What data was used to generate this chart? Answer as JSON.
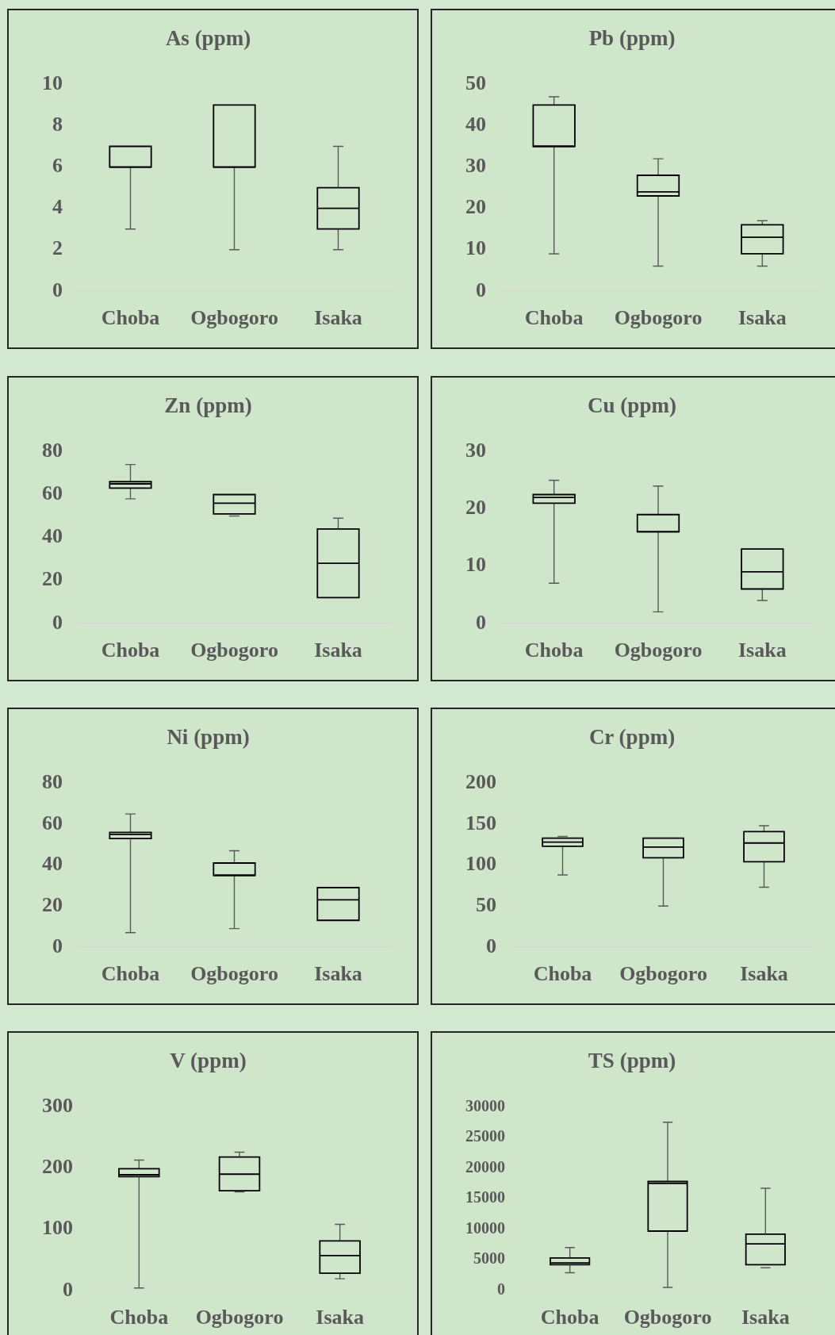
{
  "chart_data": [
    {
      "type": "box",
      "title": "As (ppm)",
      "categories": [
        "Choba",
        "Ogbogoro",
        "Isaka"
      ],
      "ylim": [
        0,
        10
      ],
      "yticks": [
        0,
        2,
        4,
        6,
        8,
        10
      ],
      "boxes": [
        {
          "low": 3,
          "q1": 6,
          "median": 6,
          "q3": 7,
          "high": 7
        },
        {
          "low": 2,
          "q1": 6,
          "median": 6,
          "q3": 9,
          "high": 9
        },
        {
          "low": 2,
          "q1": 3,
          "median": 4,
          "q3": 5,
          "high": 7
        }
      ]
    },
    {
      "type": "box",
      "title": "Pb (ppm)",
      "categories": [
        "Choba",
        "Ogbogoro",
        "Isaka"
      ],
      "ylim": [
        0,
        50
      ],
      "yticks": [
        0,
        10,
        20,
        30,
        40,
        50
      ],
      "boxes": [
        {
          "low": 9,
          "q1": 35,
          "median": 35,
          "q3": 45,
          "high": 47
        },
        {
          "low": 6,
          "q1": 23,
          "median": 24,
          "q3": 28,
          "high": 32
        },
        {
          "low": 6,
          "q1": 9,
          "median": 13,
          "q3": 16,
          "high": 17
        }
      ]
    },
    {
      "type": "box",
      "title": "Zn (ppm)",
      "categories": [
        "Choba",
        "Ogbogoro",
        "Isaka"
      ],
      "ylim": [
        0,
        80
      ],
      "yticks": [
        0,
        20,
        40,
        60,
        80
      ],
      "boxes": [
        {
          "low": 58,
          "q1": 63,
          "median": 65,
          "q3": 66,
          "high": 74
        },
        {
          "low": 50,
          "q1": 51,
          "median": 56,
          "q3": 60,
          "high": 60
        },
        {
          "low": 12,
          "q1": 12,
          "median": 28,
          "q3": 44,
          "high": 49
        }
      ]
    },
    {
      "type": "box",
      "title": "Cu (ppm)",
      "categories": [
        "Choba",
        "Ogbogoro",
        "Isaka"
      ],
      "ylim": [
        0,
        30
      ],
      "yticks": [
        0,
        10,
        20,
        30
      ],
      "boxes": [
        {
          "low": 7,
          "q1": 21,
          "median": 22,
          "q3": 22.5,
          "high": 25
        },
        {
          "low": 2,
          "q1": 16,
          "median": 16,
          "q3": 19,
          "high": 24
        },
        {
          "low": 4,
          "q1": 6,
          "median": 9,
          "q3": 13,
          "high": 13
        }
      ]
    },
    {
      "type": "box",
      "title": "Ni (ppm)",
      "categories": [
        "Choba",
        "Ogbogoro",
        "Isaka"
      ],
      "ylim": [
        0,
        80
      ],
      "yticks": [
        0,
        20,
        40,
        60,
        80
      ],
      "boxes": [
        {
          "low": 7,
          "q1": 53,
          "median": 55,
          "q3": 56,
          "high": 65
        },
        {
          "low": 9,
          "q1": 35,
          "median": 35,
          "q3": 41,
          "high": 47
        },
        {
          "low": 13,
          "q1": 13,
          "median": 23,
          "q3": 29,
          "high": 29
        }
      ]
    },
    {
      "type": "box",
      "title": "Cr (ppm)",
      "categories": [
        "Choba",
        "Ogbogoro",
        "Isaka"
      ],
      "ylim": [
        0,
        200
      ],
      "yticks": [
        0,
        50,
        100,
        150,
        200
      ],
      "boxes": [
        {
          "low": 88,
          "q1": 123,
          "median": 128,
          "q3": 133,
          "high": 135
        },
        {
          "low": 50,
          "q1": 109,
          "median": 122,
          "q3": 133,
          "high": 133
        },
        {
          "low": 73,
          "q1": 104,
          "median": 127,
          "q3": 141,
          "high": 148
        }
      ]
    },
    {
      "type": "box",
      "title": "V (ppm)",
      "categories": [
        "Choba",
        "Ogbogoro",
        "Isaka"
      ],
      "ylim": [
        0,
        300
      ],
      "yticks": [
        0,
        100,
        200,
        300
      ],
      "boxes": [
        {
          "low": 4,
          "q1": 186,
          "median": 189,
          "q3": 199,
          "high": 213
        },
        {
          "low": 161,
          "q1": 163,
          "median": 190,
          "q3": 218,
          "high": 226
        },
        {
          "low": 19,
          "q1": 28,
          "median": 57,
          "q3": 81,
          "high": 108
        }
      ]
    },
    {
      "type": "box",
      "title": "TS (ppm)",
      "categories": [
        "Choba",
        "Ogbogoro",
        "Isaka"
      ],
      "ylim": [
        0,
        30000
      ],
      "yticks": [
        0,
        5000,
        10000,
        15000,
        20000,
        25000,
        30000
      ],
      "boxes": [
        {
          "low": 2900,
          "q1": 4200,
          "median": 4500,
          "q3": 5300,
          "high": 7000
        },
        {
          "low": 500,
          "q1": 9700,
          "median": 17500,
          "q3": 17800,
          "high": 27500
        },
        {
          "low": 3700,
          "q1": 4200,
          "median": 7600,
          "q3": 9200,
          "high": 16700
        }
      ]
    }
  ]
}
